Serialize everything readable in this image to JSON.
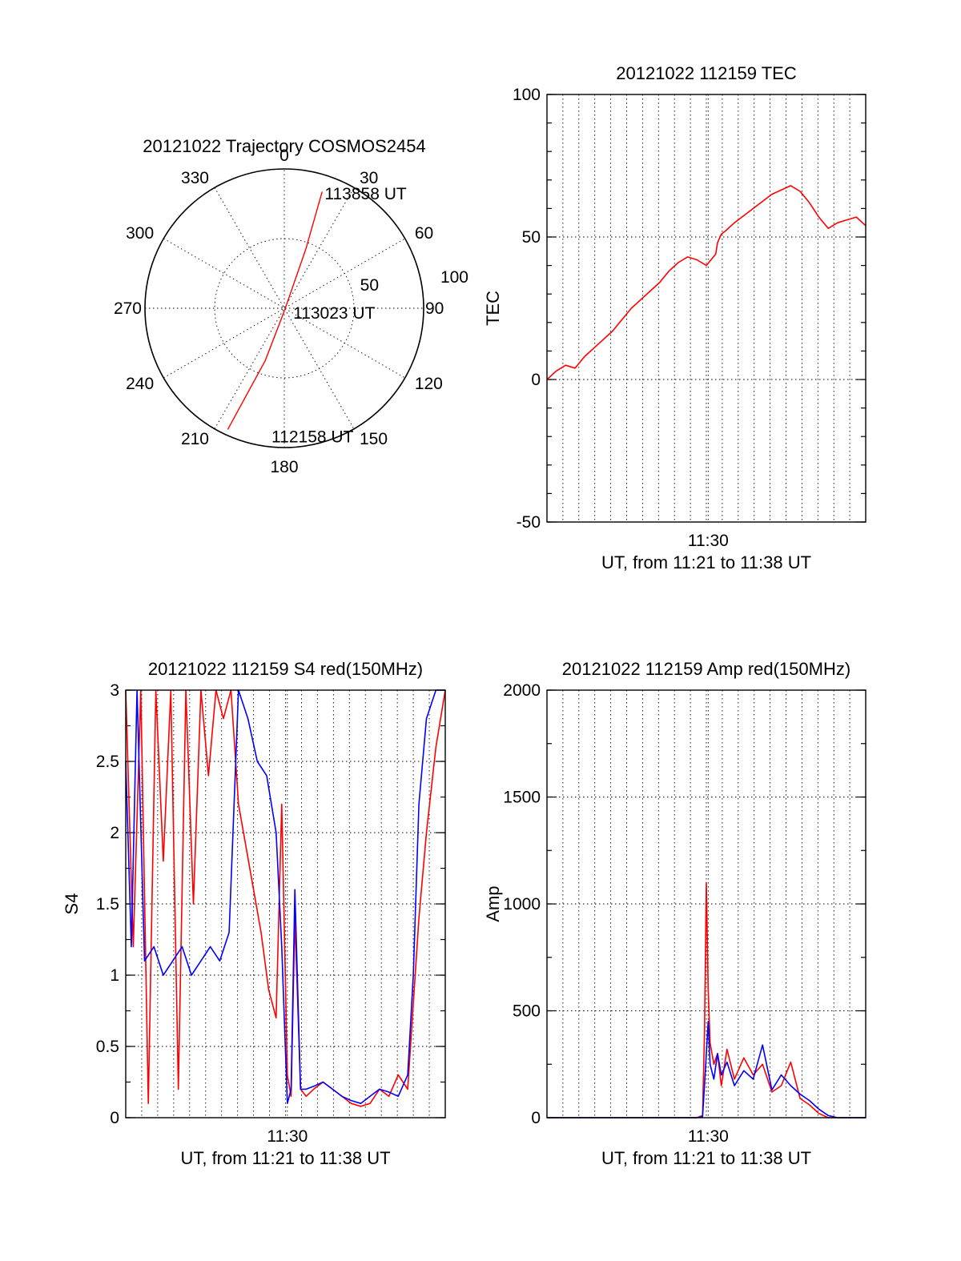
{
  "chart_data": [
    {
      "id": "polar",
      "type": "polar-trajectory",
      "title": "20121022 Trajectory COSMOS2454",
      "angle_labels": [
        "0",
        "30",
        "60",
        "90",
        "120",
        "150",
        "180",
        "210",
        "240",
        "270",
        "300",
        "330"
      ],
      "radius_labels": [
        "50",
        "100"
      ],
      "grid": true,
      "series": [
        {
          "color": "#ff0000",
          "points": [
            {
              "az": 205,
              "zen": 96
            },
            {
              "az": 200,
              "zen": 40
            },
            {
              "az": 180,
              "zen": 2
            },
            {
              "az": 20,
              "zen": 45
            },
            {
              "az": 18,
              "zen": 88
            }
          ]
        }
      ],
      "annotations": [
        {
          "text": "113858 UT",
          "az": 20,
          "zen": 88
        },
        {
          "text": "113023 UT",
          "az": 110,
          "zen": 8
        },
        {
          "text": "112158 UT",
          "az": 185,
          "zen": 92
        }
      ]
    },
    {
      "id": "tec",
      "type": "line",
      "title": "20121022 112159 TEC",
      "ylabel": "TEC",
      "xlabel": "UT, from 11:21 to 11:38 UT",
      "xlim": [
        0,
        17
      ],
      "ylim": [
        -50,
        100
      ],
      "yticks": [
        "-50",
        "0",
        "50",
        "100"
      ],
      "xticks": [
        {
          "x": 8.6,
          "label": "11:30"
        }
      ],
      "grid": true,
      "series": [
        {
          "color": "#ff0000",
          "x": [
            0,
            0.5,
            1.0,
            1.5,
            2.0,
            2.5,
            3.0,
            3.5,
            4.0,
            4.5,
            5.0,
            5.5,
            6.0,
            6.5,
            7.0,
            7.5,
            8.0,
            8.5,
            9.0,
            9.1,
            9.3,
            9.5,
            10.0,
            11.0,
            12.0,
            13.0,
            13.5,
            14.0,
            14.5,
            15.0,
            15.5,
            16.0,
            16.5,
            17.0
          ],
          "y": [
            0,
            3,
            5,
            4,
            8,
            11,
            14,
            17,
            21,
            25,
            28,
            31,
            34,
            38,
            41,
            43,
            42,
            40,
            44,
            48,
            51,
            52,
            55,
            60,
            65,
            68,
            66,
            62,
            57,
            53,
            55,
            56,
            57,
            54
          ]
        }
      ]
    },
    {
      "id": "s4",
      "type": "line",
      "title": "20121022 112159 S4 red(150MHz)",
      "ylabel": "S4",
      "xlabel": "UT, from 11:21 to 11:38 UT",
      "xlim": [
        0,
        17
      ],
      "ylim": [
        0,
        3
      ],
      "yticks": [
        "0",
        "0.5",
        "1",
        "1.5",
        "2",
        "2.5",
        "3"
      ],
      "xticks": [
        {
          "x": 8.6,
          "label": "11:30"
        }
      ],
      "grid": true,
      "series": [
        {
          "color": "#ff0000",
          "x": [
            0,
            0.4,
            0.8,
            1.2,
            1.6,
            2.0,
            2.4,
            2.8,
            3.2,
            3.6,
            4.0,
            4.4,
            4.8,
            5.2,
            5.6,
            6.0,
            6.4,
            6.8,
            7.2,
            7.6,
            8.0,
            8.3,
            8.6,
            8.8,
            9.0,
            9.3,
            9.6,
            10.0,
            10.5,
            11.0,
            11.5,
            12.0,
            12.5,
            13.0,
            13.5,
            14.0,
            14.5,
            15.0,
            15.3,
            15.6,
            16.0,
            16.5,
            17.0
          ],
          "y": [
            3,
            1.2,
            3,
            0.1,
            3,
            1.8,
            3,
            0.2,
            3,
            1.5,
            3,
            2.4,
            3,
            2.8,
            3,
            2.2,
            1.9,
            1.6,
            1.3,
            0.9,
            0.7,
            2.2,
            0.3,
            0.15,
            1.4,
            0.2,
            0.15,
            0.2,
            0.25,
            0.2,
            0.15,
            0.1,
            0.08,
            0.1,
            0.2,
            0.15,
            0.3,
            0.2,
            0.8,
            1.4,
            2.0,
            2.6,
            3
          ]
        },
        {
          "color": "#0000ff",
          "x": [
            0,
            0.3,
            0.6,
            1.0,
            1.5,
            2.0,
            2.5,
            3.0,
            3.5,
            4.0,
            4.5,
            5.0,
            5.5,
            6.0,
            6.5,
            7.0,
            7.5,
            8.0,
            8.3,
            8.6,
            8.8,
            9.0,
            9.3,
            9.6,
            10.0,
            10.5,
            11.0,
            11.5,
            12.0,
            12.5,
            13.0,
            13.5,
            14.0,
            14.5,
            15.0,
            15.3,
            15.6,
            16.0,
            16.5,
            17.0
          ],
          "y": [
            2.5,
            1.2,
            3,
            1.1,
            1.2,
            1.0,
            1.1,
            1.2,
            1.0,
            1.1,
            1.2,
            1.1,
            1.3,
            3,
            2.8,
            2.5,
            2.4,
            2.0,
            1.2,
            0.1,
            0.2,
            1.6,
            0.2,
            0.2,
            0.22,
            0.25,
            0.2,
            0.15,
            0.12,
            0.1,
            0.15,
            0.2,
            0.18,
            0.15,
            0.3,
            1.0,
            2.2,
            2.8,
            3,
            3
          ]
        }
      ]
    },
    {
      "id": "amp",
      "type": "line",
      "title": "20121022 112159 Amp red(150MHz)",
      "ylabel": "Amp",
      "xlabel": "UT, from 11:21 to 11:38 UT",
      "xlim": [
        0,
        17
      ],
      "ylim": [
        0,
        2000
      ],
      "yticks": [
        "0",
        "500",
        "1000",
        "1500",
        "2000"
      ],
      "xticks": [
        {
          "x": 8.6,
          "label": "11:30"
        }
      ],
      "grid": true,
      "series": [
        {
          "color": "#ff0000",
          "x": [
            0,
            8.0,
            8.3,
            8.4,
            8.5,
            8.6,
            8.7,
            8.9,
            9.1,
            9.3,
            9.6,
            10.0,
            10.5,
            11.0,
            11.5,
            12.0,
            12.5,
            13.0,
            13.5,
            14.0,
            14.5,
            15.0,
            15.5,
            17.0
          ],
          "y": [
            0,
            0,
            10,
            400,
            1100,
            600,
            350,
            250,
            300,
            150,
            320,
            180,
            280,
            200,
            250,
            120,
            150,
            260,
            90,
            60,
            20,
            0,
            0,
            0
          ]
        },
        {
          "color": "#0000ff",
          "x": [
            0,
            8.0,
            8.3,
            8.4,
            8.5,
            8.6,
            8.7,
            8.9,
            9.1,
            9.3,
            9.6,
            10.0,
            10.5,
            11.0,
            11.5,
            12.0,
            12.5,
            13.0,
            13.5,
            14.0,
            14.5,
            15.0,
            15.5,
            17.0
          ],
          "y": [
            0,
            0,
            5,
            150,
            300,
            450,
            250,
            180,
            300,
            200,
            260,
            150,
            220,
            180,
            340,
            130,
            200,
            150,
            110,
            80,
            40,
            10,
            0,
            0
          ]
        }
      ]
    }
  ]
}
